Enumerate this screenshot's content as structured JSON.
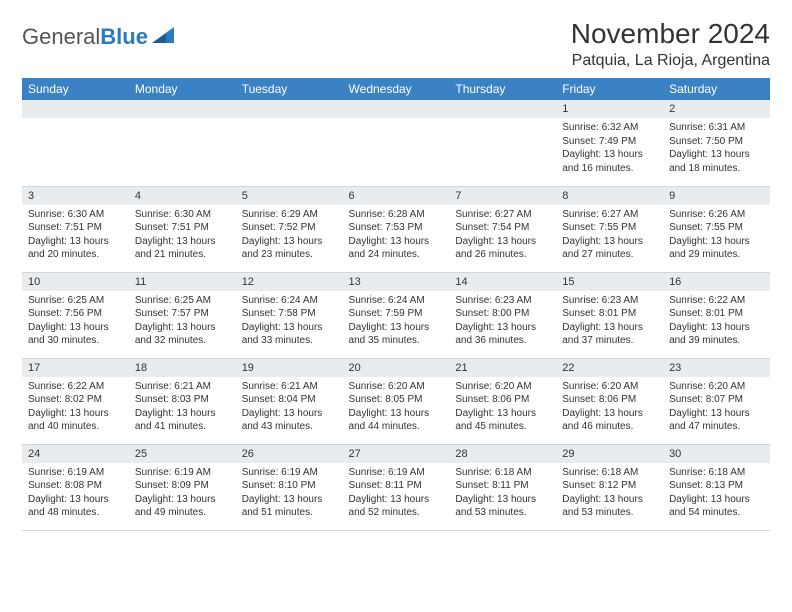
{
  "brand": {
    "name_gray": "General",
    "name_blue": "Blue"
  },
  "title": "November 2024",
  "location": "Patquia, La Rioja, Argentina",
  "colors": {
    "header_bg": "#3b82c4",
    "header_text": "#ffffff",
    "daynum_bg": "#e9ecef",
    "border": "#cfd6dc",
    "text": "#333333",
    "brand_blue": "#2a7ac0",
    "brand_gray": "#555555",
    "page_bg": "#ffffff"
  },
  "typography": {
    "title_fontsize": 28,
    "location_fontsize": 16,
    "weekday_fontsize": 12,
    "daynum_fontsize": 11,
    "cell_fontsize": 10,
    "logo_fontsize": 22
  },
  "weekdays": [
    "Sunday",
    "Monday",
    "Tuesday",
    "Wednesday",
    "Thursday",
    "Friday",
    "Saturday"
  ],
  "weeks": [
    [
      null,
      null,
      null,
      null,
      null,
      {
        "n": "1",
        "sunrise": "6:32 AM",
        "sunset": "7:49 PM",
        "daylight": "13 hours and 16 minutes."
      },
      {
        "n": "2",
        "sunrise": "6:31 AM",
        "sunset": "7:50 PM",
        "daylight": "13 hours and 18 minutes."
      }
    ],
    [
      {
        "n": "3",
        "sunrise": "6:30 AM",
        "sunset": "7:51 PM",
        "daylight": "13 hours and 20 minutes."
      },
      {
        "n": "4",
        "sunrise": "6:30 AM",
        "sunset": "7:51 PM",
        "daylight": "13 hours and 21 minutes."
      },
      {
        "n": "5",
        "sunrise": "6:29 AM",
        "sunset": "7:52 PM",
        "daylight": "13 hours and 23 minutes."
      },
      {
        "n": "6",
        "sunrise": "6:28 AM",
        "sunset": "7:53 PM",
        "daylight": "13 hours and 24 minutes."
      },
      {
        "n": "7",
        "sunrise": "6:27 AM",
        "sunset": "7:54 PM",
        "daylight": "13 hours and 26 minutes."
      },
      {
        "n": "8",
        "sunrise": "6:27 AM",
        "sunset": "7:55 PM",
        "daylight": "13 hours and 27 minutes."
      },
      {
        "n": "9",
        "sunrise": "6:26 AM",
        "sunset": "7:55 PM",
        "daylight": "13 hours and 29 minutes."
      }
    ],
    [
      {
        "n": "10",
        "sunrise": "6:25 AM",
        "sunset": "7:56 PM",
        "daylight": "13 hours and 30 minutes."
      },
      {
        "n": "11",
        "sunrise": "6:25 AM",
        "sunset": "7:57 PM",
        "daylight": "13 hours and 32 minutes."
      },
      {
        "n": "12",
        "sunrise": "6:24 AM",
        "sunset": "7:58 PM",
        "daylight": "13 hours and 33 minutes."
      },
      {
        "n": "13",
        "sunrise": "6:24 AM",
        "sunset": "7:59 PM",
        "daylight": "13 hours and 35 minutes."
      },
      {
        "n": "14",
        "sunrise": "6:23 AM",
        "sunset": "8:00 PM",
        "daylight": "13 hours and 36 minutes."
      },
      {
        "n": "15",
        "sunrise": "6:23 AM",
        "sunset": "8:01 PM",
        "daylight": "13 hours and 37 minutes."
      },
      {
        "n": "16",
        "sunrise": "6:22 AM",
        "sunset": "8:01 PM",
        "daylight": "13 hours and 39 minutes."
      }
    ],
    [
      {
        "n": "17",
        "sunrise": "6:22 AM",
        "sunset": "8:02 PM",
        "daylight": "13 hours and 40 minutes."
      },
      {
        "n": "18",
        "sunrise": "6:21 AM",
        "sunset": "8:03 PM",
        "daylight": "13 hours and 41 minutes."
      },
      {
        "n": "19",
        "sunrise": "6:21 AM",
        "sunset": "8:04 PM",
        "daylight": "13 hours and 43 minutes."
      },
      {
        "n": "20",
        "sunrise": "6:20 AM",
        "sunset": "8:05 PM",
        "daylight": "13 hours and 44 minutes."
      },
      {
        "n": "21",
        "sunrise": "6:20 AM",
        "sunset": "8:06 PM",
        "daylight": "13 hours and 45 minutes."
      },
      {
        "n": "22",
        "sunrise": "6:20 AM",
        "sunset": "8:06 PM",
        "daylight": "13 hours and 46 minutes."
      },
      {
        "n": "23",
        "sunrise": "6:20 AM",
        "sunset": "8:07 PM",
        "daylight": "13 hours and 47 minutes."
      }
    ],
    [
      {
        "n": "24",
        "sunrise": "6:19 AM",
        "sunset": "8:08 PM",
        "daylight": "13 hours and 48 minutes."
      },
      {
        "n": "25",
        "sunrise": "6:19 AM",
        "sunset": "8:09 PM",
        "daylight": "13 hours and 49 minutes."
      },
      {
        "n": "26",
        "sunrise": "6:19 AM",
        "sunset": "8:10 PM",
        "daylight": "13 hours and 51 minutes."
      },
      {
        "n": "27",
        "sunrise": "6:19 AM",
        "sunset": "8:11 PM",
        "daylight": "13 hours and 52 minutes."
      },
      {
        "n": "28",
        "sunrise": "6:18 AM",
        "sunset": "8:11 PM",
        "daylight": "13 hours and 53 minutes."
      },
      {
        "n": "29",
        "sunrise": "6:18 AM",
        "sunset": "8:12 PM",
        "daylight": "13 hours and 53 minutes."
      },
      {
        "n": "30",
        "sunrise": "6:18 AM",
        "sunset": "8:13 PM",
        "daylight": "13 hours and 54 minutes."
      }
    ]
  ],
  "labels": {
    "sunrise": "Sunrise: ",
    "sunset": "Sunset: ",
    "daylight": "Daylight: "
  }
}
